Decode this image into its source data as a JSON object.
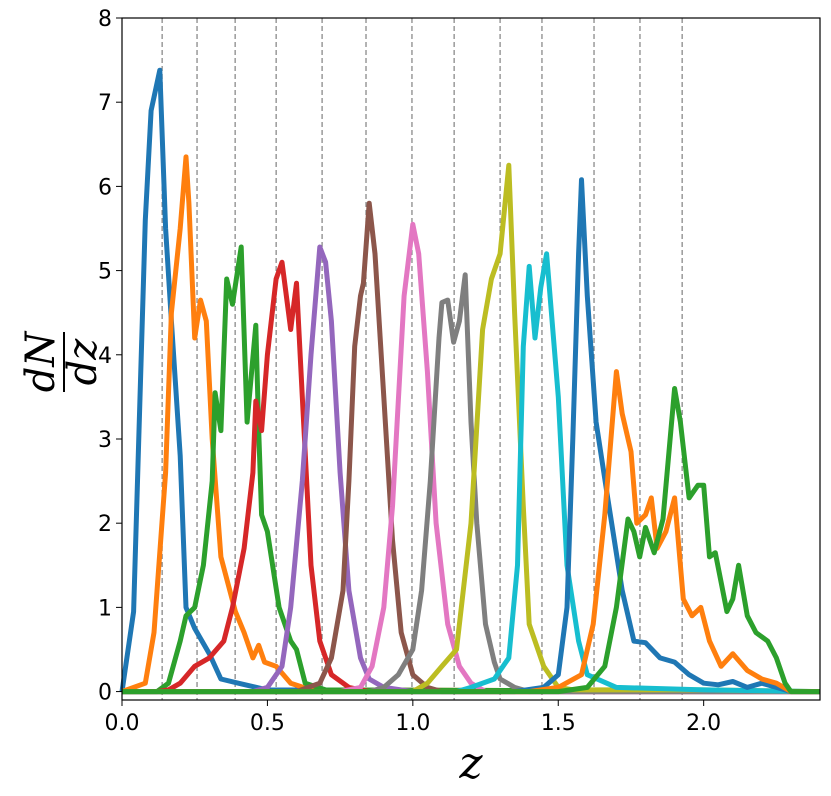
{
  "chart_data": {
    "type": "line",
    "xlabel": "z",
    "ylabel": {
      "numerator": "dN",
      "denominator": "dz"
    },
    "xlim": [
      0,
      2.4
    ],
    "ylim": [
      -0.1,
      8
    ],
    "xticks": [
      {
        "value": 0,
        "label": "0.0"
      },
      {
        "value": 0.5,
        "label": "0.5"
      },
      {
        "value": 1,
        "label": "1.0"
      },
      {
        "value": 1.5,
        "label": "1.5"
      },
      {
        "value": 2,
        "label": "2.0"
      }
    ],
    "yticks": [
      0,
      1,
      2,
      3,
      4,
      5,
      6,
      7,
      8
    ],
    "vlines": [
      0.138,
      0.258,
      0.389,
      0.53,
      0.688,
      0.839,
      0.997,
      1.142,
      1.3,
      1.444,
      1.623,
      1.781,
      1.926
    ],
    "vline_color": "#808080",
    "series": [
      {
        "color": "#1f77b4",
        "x": [
          0,
          0.04,
          0.08,
          0.1,
          0.13,
          0.15,
          0.17,
          0.2,
          0.22,
          0.25,
          0.3,
          0.34,
          0.4,
          0.5,
          2.4
        ],
        "values": [
          0,
          0.95,
          5.6,
          6.9,
          7.38,
          5.5,
          4.4,
          2.8,
          1.0,
          0.75,
          0.45,
          0.15,
          0.1,
          0.02,
          0
        ]
      },
      {
        "color": "#ff7f0e",
        "x": [
          0,
          0.08,
          0.11,
          0.15,
          0.17,
          0.2,
          0.22,
          0.23,
          0.25,
          0.27,
          0.29,
          0.31,
          0.34,
          0.39,
          0.42,
          0.45,
          0.47,
          0.49,
          0.53,
          0.58,
          0.65,
          2.4
        ],
        "values": [
          0,
          0.1,
          0.7,
          2.6,
          4.5,
          5.5,
          6.35,
          5.8,
          4.2,
          4.65,
          4.4,
          3.0,
          1.6,
          0.95,
          0.7,
          0.4,
          0.55,
          0.35,
          0.3,
          0.1,
          0.02,
          0
        ]
      },
      {
        "color": "#2ca02c",
        "x": [
          0,
          0.12,
          0.16,
          0.2,
          0.22,
          0.25,
          0.28,
          0.31,
          0.32,
          0.34,
          0.36,
          0.38,
          0.41,
          0.43,
          0.46,
          0.47,
          0.48,
          0.5,
          0.54,
          0.58,
          0.6,
          0.63,
          0.7,
          2.4
        ],
        "values": [
          0,
          0,
          0.1,
          0.6,
          0.9,
          1.0,
          1.5,
          2.5,
          3.55,
          3.1,
          4.9,
          4.6,
          5.28,
          3.2,
          4.35,
          3.1,
          2.1,
          1.9,
          1.0,
          0.6,
          0.5,
          0.1,
          0.02,
          0
        ]
      },
      {
        "color": "#d62728",
        "x": [
          0,
          0.12,
          0.16,
          0.2,
          0.25,
          0.3,
          0.35,
          0.38,
          0.42,
          0.45,
          0.46,
          0.48,
          0.5,
          0.53,
          0.55,
          0.58,
          0.6,
          0.62,
          0.65,
          0.68,
          0.72,
          0.78,
          0.85,
          2.4
        ],
        "values": [
          0,
          0,
          0.02,
          0.1,
          0.3,
          0.4,
          0.6,
          1.0,
          1.7,
          2.6,
          3.45,
          3.1,
          4.0,
          4.9,
          5.1,
          4.3,
          4.85,
          3.5,
          1.5,
          0.6,
          0.2,
          0.05,
          0,
          0
        ]
      },
      {
        "color": "#9467bd",
        "x": [
          0,
          0.45,
          0.5,
          0.55,
          0.58,
          0.62,
          0.65,
          0.68,
          0.7,
          0.72,
          0.75,
          0.78,
          0.82,
          0.85,
          0.9,
          1.0,
          2.4
        ],
        "values": [
          0,
          0,
          0.05,
          0.3,
          1.0,
          2.5,
          4.0,
          5.28,
          5.1,
          4.4,
          2.6,
          1.2,
          0.4,
          0.15,
          0.05,
          0,
          0
        ]
      },
      {
        "color": "#8c564b",
        "x": [
          0,
          0.6,
          0.68,
          0.72,
          0.76,
          0.78,
          0.8,
          0.82,
          0.83,
          0.85,
          0.87,
          0.9,
          0.93,
          0.96,
          1.0,
          1.05,
          1.1,
          2.4
        ],
        "values": [
          0,
          0,
          0.1,
          0.4,
          1.2,
          2.5,
          4.1,
          4.7,
          4.85,
          5.8,
          5.2,
          3.5,
          1.8,
          0.7,
          0.2,
          0.05,
          0,
          0
        ]
      },
      {
        "color": "#e377c2",
        "x": [
          0,
          0.75,
          0.82,
          0.86,
          0.9,
          0.93,
          0.97,
          1.0,
          1.02,
          1.05,
          1.08,
          1.12,
          1.16,
          1.2,
          1.25,
          2.4
        ],
        "values": [
          0,
          0,
          0.05,
          0.3,
          1.0,
          2.2,
          4.7,
          5.55,
          5.2,
          3.8,
          2.0,
          0.8,
          0.3,
          0.1,
          0,
          0
        ]
      },
      {
        "color": "#7f7f7f",
        "x": [
          0,
          0.85,
          0.9,
          0.95,
          1.0,
          1.03,
          1.06,
          1.09,
          1.1,
          1.12,
          1.14,
          1.16,
          1.18,
          1.2,
          1.22,
          1.25,
          1.28,
          1.3,
          1.35,
          1.4,
          2.4
        ],
        "values": [
          0,
          0,
          0.05,
          0.2,
          0.5,
          1.2,
          2.5,
          4.2,
          4.62,
          4.65,
          4.15,
          4.4,
          4.95,
          3.2,
          2.0,
          0.8,
          0.35,
          0.15,
          0.05,
          0,
          0
        ]
      },
      {
        "color": "#bcbd22",
        "x": [
          0,
          1.0,
          1.05,
          1.1,
          1.15,
          1.2,
          1.24,
          1.27,
          1.3,
          1.33,
          1.35,
          1.38,
          1.4,
          1.45,
          1.5,
          1.55,
          2.0,
          2.4
        ],
        "values": [
          0,
          0,
          0.1,
          0.3,
          0.5,
          2.0,
          4.3,
          4.9,
          5.2,
          6.25,
          4.5,
          2.2,
          0.8,
          0.3,
          0.05,
          0.02,
          0.02,
          0
        ]
      },
      {
        "color": "#17becf",
        "x": [
          0,
          1.15,
          1.2,
          1.28,
          1.33,
          1.36,
          1.38,
          1.4,
          1.42,
          1.44,
          1.46,
          1.5,
          1.53,
          1.57,
          1.6,
          1.7,
          2.0,
          2.4
        ],
        "values": [
          0,
          0,
          0.05,
          0.15,
          0.4,
          1.5,
          4.1,
          5.05,
          4.2,
          4.8,
          5.2,
          3.5,
          1.5,
          0.6,
          0.2,
          0.05,
          0.02,
          0
        ]
      },
      {
        "color": "#1f77b4",
        "x": [
          0,
          1.35,
          1.45,
          1.5,
          1.53,
          1.55,
          1.57,
          1.58,
          1.6,
          1.63,
          1.67,
          1.72,
          1.76,
          1.8,
          1.85,
          1.9,
          1.95,
          2.0,
          2.05,
          2.1,
          2.15,
          2.2,
          2.25,
          2.3,
          2.4
        ],
        "values": [
          0,
          0,
          0.05,
          0.2,
          1.0,
          3.0,
          5.2,
          6.08,
          4.7,
          3.2,
          2.3,
          1.2,
          0.6,
          0.58,
          0.4,
          0.35,
          0.2,
          0.1,
          0.08,
          0.12,
          0.05,
          0.1,
          0.05,
          0,
          0
        ]
      },
      {
        "color": "#ff7f0e",
        "x": [
          0,
          1.4,
          1.5,
          1.58,
          1.62,
          1.66,
          1.7,
          1.72,
          1.75,
          1.77,
          1.8,
          1.82,
          1.84,
          1.87,
          1.9,
          1.93,
          1.96,
          1.99,
          2.02,
          2.06,
          2.1,
          2.15,
          2.2,
          2.25,
          2.3,
          2.4
        ],
        "values": [
          0,
          0,
          0.05,
          0.2,
          0.8,
          2.1,
          3.8,
          3.3,
          2.85,
          2.0,
          2.1,
          2.3,
          1.7,
          1.9,
          2.3,
          1.1,
          0.9,
          1.0,
          0.6,
          0.3,
          0.45,
          0.25,
          0.15,
          0.1,
          0,
          0
        ]
      },
      {
        "color": "#2ca02c",
        "x": [
          0,
          1.5,
          1.6,
          1.66,
          1.7,
          1.74,
          1.76,
          1.78,
          1.8,
          1.83,
          1.86,
          1.9,
          1.92,
          1.95,
          1.98,
          2.0,
          2.02,
          2.04,
          2.06,
          2.08,
          2.1,
          2.12,
          2.15,
          2.18,
          2.22,
          2.25,
          2.28,
          2.3,
          2.4
        ],
        "values": [
          0,
          0,
          0.05,
          0.3,
          1.0,
          2.05,
          1.9,
          1.6,
          1.95,
          1.65,
          2.05,
          3.6,
          3.2,
          2.3,
          2.45,
          2.45,
          1.6,
          1.65,
          1.3,
          0.95,
          1.1,
          1.5,
          0.9,
          0.7,
          0.6,
          0.4,
          0.1,
          0,
          0
        ]
      }
    ]
  }
}
